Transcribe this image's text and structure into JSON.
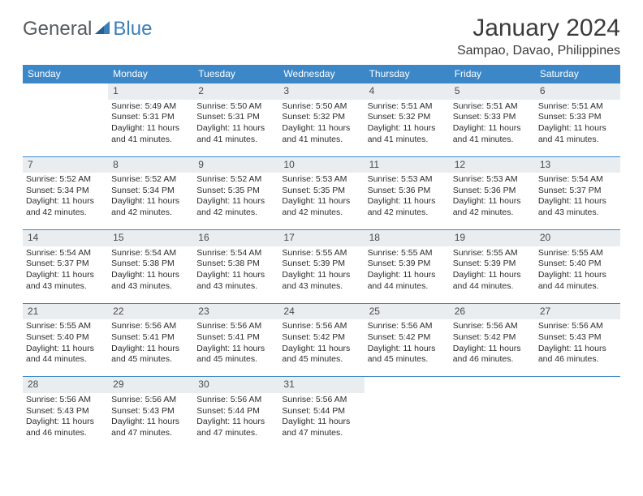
{
  "logo": {
    "word1": "General",
    "word2": "Blue"
  },
  "title": "January 2024",
  "location": "Sampao, Davao, Philippines",
  "columns": [
    "Sunday",
    "Monday",
    "Tuesday",
    "Wednesday",
    "Thursday",
    "Friday",
    "Saturday"
  ],
  "colors": {
    "header_bg": "#3b87c8",
    "header_text": "#ffffff",
    "daynum_bg": "#e9edf0",
    "rule": "#3b87c8",
    "text": "#2c2c2c",
    "logo_gray": "#555a60",
    "logo_blue": "#3b7fb8"
  },
  "weeks": [
    [
      null,
      {
        "n": "1",
        "sr": "5:49 AM",
        "ss": "5:31 PM",
        "dl": "11 hours and 41 minutes."
      },
      {
        "n": "2",
        "sr": "5:50 AM",
        "ss": "5:31 PM",
        "dl": "11 hours and 41 minutes."
      },
      {
        "n": "3",
        "sr": "5:50 AM",
        "ss": "5:32 PM",
        "dl": "11 hours and 41 minutes."
      },
      {
        "n": "4",
        "sr": "5:51 AM",
        "ss": "5:32 PM",
        "dl": "11 hours and 41 minutes."
      },
      {
        "n": "5",
        "sr": "5:51 AM",
        "ss": "5:33 PM",
        "dl": "11 hours and 41 minutes."
      },
      {
        "n": "6",
        "sr": "5:51 AM",
        "ss": "5:33 PM",
        "dl": "11 hours and 41 minutes."
      }
    ],
    [
      {
        "n": "7",
        "sr": "5:52 AM",
        "ss": "5:34 PM",
        "dl": "11 hours and 42 minutes."
      },
      {
        "n": "8",
        "sr": "5:52 AM",
        "ss": "5:34 PM",
        "dl": "11 hours and 42 minutes."
      },
      {
        "n": "9",
        "sr": "5:52 AM",
        "ss": "5:35 PM",
        "dl": "11 hours and 42 minutes."
      },
      {
        "n": "10",
        "sr": "5:53 AM",
        "ss": "5:35 PM",
        "dl": "11 hours and 42 minutes."
      },
      {
        "n": "11",
        "sr": "5:53 AM",
        "ss": "5:36 PM",
        "dl": "11 hours and 42 minutes."
      },
      {
        "n": "12",
        "sr": "5:53 AM",
        "ss": "5:36 PM",
        "dl": "11 hours and 42 minutes."
      },
      {
        "n": "13",
        "sr": "5:54 AM",
        "ss": "5:37 PM",
        "dl": "11 hours and 43 minutes."
      }
    ],
    [
      {
        "n": "14",
        "sr": "5:54 AM",
        "ss": "5:37 PM",
        "dl": "11 hours and 43 minutes."
      },
      {
        "n": "15",
        "sr": "5:54 AM",
        "ss": "5:38 PM",
        "dl": "11 hours and 43 minutes."
      },
      {
        "n": "16",
        "sr": "5:54 AM",
        "ss": "5:38 PM",
        "dl": "11 hours and 43 minutes."
      },
      {
        "n": "17",
        "sr": "5:55 AM",
        "ss": "5:39 PM",
        "dl": "11 hours and 43 minutes."
      },
      {
        "n": "18",
        "sr": "5:55 AM",
        "ss": "5:39 PM",
        "dl": "11 hours and 44 minutes."
      },
      {
        "n": "19",
        "sr": "5:55 AM",
        "ss": "5:39 PM",
        "dl": "11 hours and 44 minutes."
      },
      {
        "n": "20",
        "sr": "5:55 AM",
        "ss": "5:40 PM",
        "dl": "11 hours and 44 minutes."
      }
    ],
    [
      {
        "n": "21",
        "sr": "5:55 AM",
        "ss": "5:40 PM",
        "dl": "11 hours and 44 minutes."
      },
      {
        "n": "22",
        "sr": "5:56 AM",
        "ss": "5:41 PM",
        "dl": "11 hours and 45 minutes."
      },
      {
        "n": "23",
        "sr": "5:56 AM",
        "ss": "5:41 PM",
        "dl": "11 hours and 45 minutes."
      },
      {
        "n": "24",
        "sr": "5:56 AM",
        "ss": "5:42 PM",
        "dl": "11 hours and 45 minutes."
      },
      {
        "n": "25",
        "sr": "5:56 AM",
        "ss": "5:42 PM",
        "dl": "11 hours and 45 minutes."
      },
      {
        "n": "26",
        "sr": "5:56 AM",
        "ss": "5:42 PM",
        "dl": "11 hours and 46 minutes."
      },
      {
        "n": "27",
        "sr": "5:56 AM",
        "ss": "5:43 PM",
        "dl": "11 hours and 46 minutes."
      }
    ],
    [
      {
        "n": "28",
        "sr": "5:56 AM",
        "ss": "5:43 PM",
        "dl": "11 hours and 46 minutes."
      },
      {
        "n": "29",
        "sr": "5:56 AM",
        "ss": "5:43 PM",
        "dl": "11 hours and 47 minutes."
      },
      {
        "n": "30",
        "sr": "5:56 AM",
        "ss": "5:44 PM",
        "dl": "11 hours and 47 minutes."
      },
      {
        "n": "31",
        "sr": "5:56 AM",
        "ss": "5:44 PM",
        "dl": "11 hours and 47 minutes."
      },
      null,
      null,
      null
    ]
  ],
  "labels": {
    "sunrise": "Sunrise:",
    "sunset": "Sunset:",
    "daylight": "Daylight:"
  }
}
